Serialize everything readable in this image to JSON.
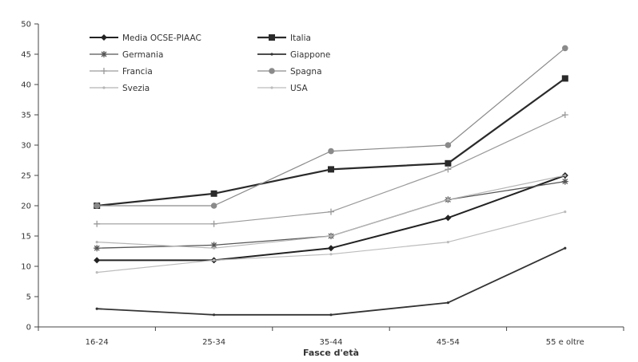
{
  "chart_data": {
    "type": "line",
    "categories": [
      "16-24",
      "25-34",
      "35-44",
      "45-54",
      "55 e oltre"
    ],
    "xlabel": "Fasce d'età",
    "ylabel": "",
    "ylim": [
      0,
      50
    ],
    "yticks": [
      0,
      5,
      10,
      15,
      20,
      25,
      30,
      35,
      40,
      45,
      50
    ],
    "grid": false,
    "legend_position": "top-left",
    "series": [
      {
        "name": "Media OCSE-PIAAC",
        "values": [
          11,
          11,
          13,
          18,
          25
        ],
        "color": "#222222",
        "marker": "diamond",
        "width": 2
      },
      {
        "name": "Italia",
        "values": [
          20,
          22,
          26,
          27,
          41
        ],
        "color": "#2a2a2a",
        "marker": "square",
        "width": 2.2
      },
      {
        "name": "Germania",
        "values": [
          13,
          13.5,
          15,
          21,
          24
        ],
        "color": "#555555",
        "marker": "star",
        "width": 1.3
      },
      {
        "name": "Giappone",
        "values": [
          3,
          2,
          2,
          4,
          13
        ],
        "color": "#333333",
        "marker": "none",
        "width": 1.8
      },
      {
        "name": "Francia",
        "values": [
          17,
          17,
          19,
          26,
          35
        ],
        "color": "#9a9a9a",
        "marker": "plus",
        "width": 1.2
      },
      {
        "name": "Spagna",
        "values": [
          20,
          20,
          29,
          30,
          46
        ],
        "color": "#8a8a8a",
        "marker": "circle",
        "width": 1.2
      },
      {
        "name": "Svezia",
        "values": [
          14,
          13,
          15,
          21,
          25
        ],
        "color": "#b5b5b5",
        "marker": "none",
        "width": 1.2
      },
      {
        "name": "USA",
        "values": [
          9,
          11,
          12,
          14,
          19
        ],
        "color": "#bcbcbc",
        "marker": "none",
        "width": 1.2
      }
    ]
  }
}
